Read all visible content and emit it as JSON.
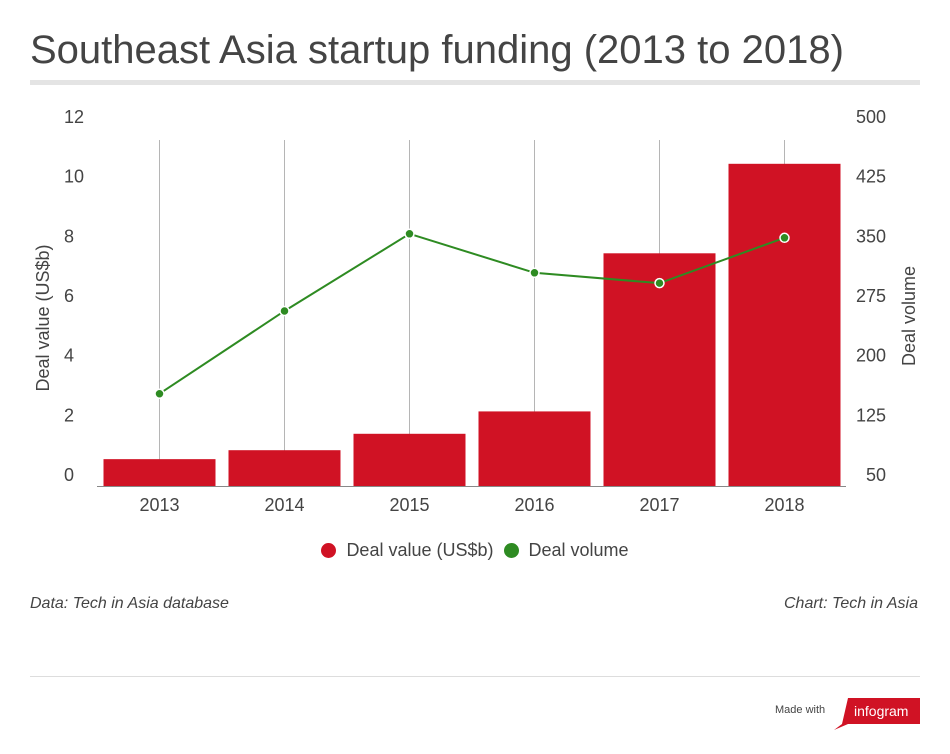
{
  "title": "Southeast Asia startup funding (2013 to 2018)",
  "footer": {
    "source": "Data: Tech in Asia database",
    "credit": "Chart: Tech in Asia",
    "made_with": "Made with",
    "brand": "infogram"
  },
  "colors": {
    "bar": "#d01224",
    "line": "#2e8b22",
    "text": "#444444",
    "brand": "#d01224"
  },
  "chart_data": {
    "type": "bar",
    "categories": [
      "2013",
      "2014",
      "2015",
      "2016",
      "2017",
      "2018"
    ],
    "series": [
      {
        "name": "Deal value (US$b)",
        "type": "bar",
        "axis": "left",
        "values": [
          0.9,
          1.2,
          1.75,
          2.5,
          7.8,
          10.8
        ]
      },
      {
        "name": "Deal volume",
        "type": "line",
        "axis": "right",
        "values": [
          166,
          270,
          367,
          318,
          305,
          362
        ]
      }
    ],
    "ylabel": "Deal value (US$b)",
    "ylabel2": "Deal volume",
    "ylim": [
      0,
      12
    ],
    "ylim2": [
      50,
      500
    ],
    "yticks": [
      "0",
      "2",
      "4",
      "6",
      "8",
      "10",
      "12"
    ],
    "yticks2": [
      "50",
      "125",
      "200",
      "275",
      "350",
      "425",
      "500"
    ],
    "grid": "vertical",
    "legend": "bottom-center"
  }
}
